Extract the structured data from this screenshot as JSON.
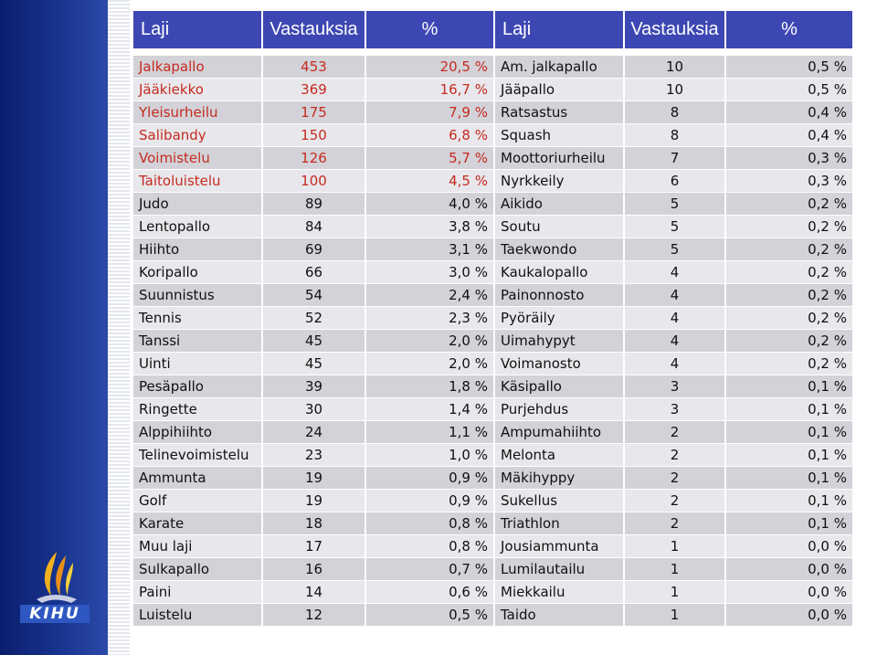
{
  "headers": [
    "Laji",
    "Vastauksia",
    "%",
    "Laji",
    "Vastauksia",
    "%"
  ],
  "highlight_color": "#c62a1f",
  "header_color": "#3d47b3",
  "logo_text": "KIHU",
  "rows": [
    {
      "left": [
        "Jalkapallo",
        "453",
        "20,5 %"
      ],
      "right": [
        "Am. jalkapallo",
        "10",
        "0,5 %"
      ]
    },
    {
      "left": [
        "Jääkiekko",
        "369",
        "16,7 %"
      ],
      "right": [
        "Jääpallo",
        "10",
        "0,5 %"
      ]
    },
    {
      "left": [
        "Yleisurheilu",
        "175",
        "7,9 %"
      ],
      "right": [
        "Ratsastus",
        "8",
        "0,4 %"
      ]
    },
    {
      "left": [
        "Salibandy",
        "150",
        "6,8 %"
      ],
      "right": [
        "Squash",
        "8",
        "0,4 %"
      ]
    },
    {
      "left": [
        "Voimistelu",
        "126",
        "5,7 %"
      ],
      "right": [
        "Moottoriurheilu",
        "7",
        "0,3 %"
      ]
    },
    {
      "left": [
        "Taitoluistelu",
        "100",
        "4,5 %"
      ],
      "right": [
        "Nyrkkeily",
        "6",
        "0,3 %"
      ]
    },
    {
      "left": [
        "Judo",
        "89",
        "4,0 %"
      ],
      "right": [
        "Aikido",
        "5",
        "0,2 %"
      ]
    },
    {
      "left": [
        "Lentopallo",
        "84",
        "3,8 %"
      ],
      "right": [
        "Soutu",
        "5",
        "0,2 %"
      ]
    },
    {
      "left": [
        "Hiihto",
        "69",
        "3,1 %"
      ],
      "right": [
        "Taekwondo",
        "5",
        "0,2 %"
      ]
    },
    {
      "left": [
        "Koripallo",
        "66",
        "3,0 %"
      ],
      "right": [
        "Kaukalopallo",
        "4",
        "0,2 %"
      ]
    },
    {
      "left": [
        "Suunnistus",
        "54",
        "2,4 %"
      ],
      "right": [
        "Painonnosto",
        "4",
        "0,2 %"
      ]
    },
    {
      "left": [
        "Tennis",
        "52",
        "2,3 %"
      ],
      "right": [
        "Pyöräily",
        "4",
        "0,2 %"
      ]
    },
    {
      "left": [
        "Tanssi",
        "45",
        "2,0 %"
      ],
      "right": [
        "Uimahypyt",
        "4",
        "0,2 %"
      ]
    },
    {
      "left": [
        "Uinti",
        "45",
        "2,0 %"
      ],
      "right": [
        "Voimanosto",
        "4",
        "0,2 %"
      ]
    },
    {
      "left": [
        "Pesäpallo",
        "39",
        "1,8 %"
      ],
      "right": [
        "Käsipallo",
        "3",
        "0,1 %"
      ]
    },
    {
      "left": [
        "Ringette",
        "30",
        "1,4 %"
      ],
      "right": [
        "Purjehdus",
        "3",
        "0,1 %"
      ]
    },
    {
      "left": [
        "Alppihiihto",
        "24",
        "1,1 %"
      ],
      "right": [
        "Ampumahiihto",
        "2",
        "0,1 %"
      ]
    },
    {
      "left": [
        "Telinevoimistelu",
        "23",
        "1,0 %"
      ],
      "right": [
        "Melonta",
        "2",
        "0,1 %"
      ]
    },
    {
      "left": [
        "Ammunta",
        "19",
        "0,9 %"
      ],
      "right": [
        "Mäkihyppy",
        "2",
        "0,1 %"
      ]
    },
    {
      "left": [
        "Golf",
        "19",
        "0,9 %"
      ],
      "right": [
        "Sukellus",
        "2",
        "0,1 %"
      ]
    },
    {
      "left": [
        "Karate",
        "18",
        "0,8 %"
      ],
      "right": [
        "Triathlon",
        "2",
        "0,1 %"
      ]
    },
    {
      "left": [
        "Muu laji",
        "17",
        "0,8 %"
      ],
      "right": [
        "Jousiammunta",
        "1",
        "0,0 %"
      ]
    },
    {
      "left": [
        "Sulkapallo",
        "16",
        "0,7 %"
      ],
      "right": [
        "Lumilautailu",
        "1",
        "0,0 %"
      ]
    },
    {
      "left": [
        "Paini",
        "14",
        "0,6 %"
      ],
      "right": [
        "Miekkailu",
        "1",
        "0,0 %"
      ]
    },
    {
      "left": [
        "Luistelu",
        "12",
        "0,5 %"
      ],
      "right": [
        "Taido",
        "1",
        "0,0 %"
      ]
    }
  ]
}
